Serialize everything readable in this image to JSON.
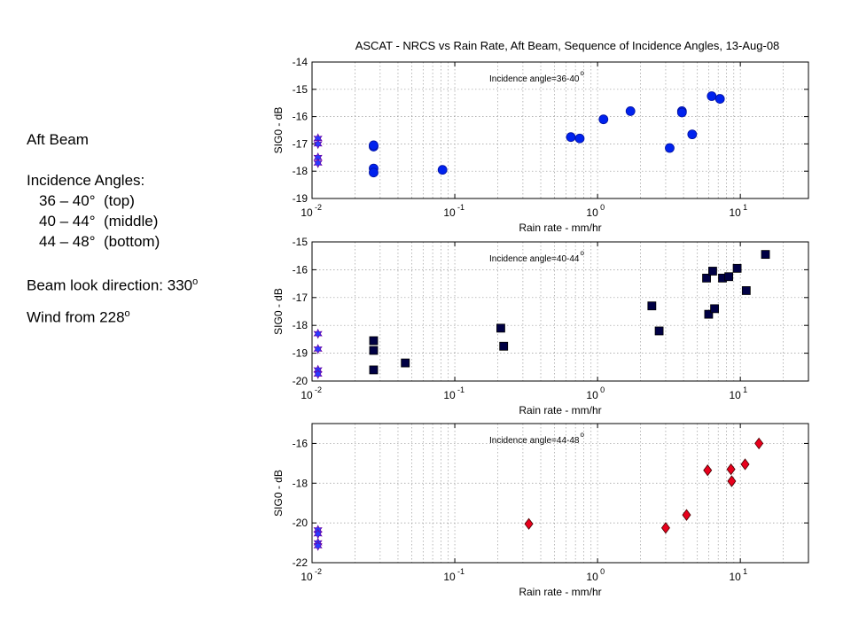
{
  "side_panel": {
    "beam": "Aft Beam",
    "angles_title": "Incidence Angles:",
    "angle_lines": [
      "36 – 40°  (top)",
      "40 – 44°  (middle)",
      "44 – 48°  (bottom)"
    ],
    "look_label": "Beam look direction: 330",
    "look_sup": "o",
    "wind_label": "Wind from 228",
    "wind_sup": "o"
  },
  "chart_title": "ASCAT - NRCS vs Rain Rate, Aft Beam, Sequence of Incidence Angles, 13-Aug-08",
  "colors": {
    "blue": "#0022ee",
    "navy": "#000044",
    "red": "#e8001c",
    "star_fill": "#2a3aff",
    "star_stroke": "#6a00a0"
  },
  "chart_data": [
    {
      "type": "scatter",
      "annotation": "Incidence angle=36-40",
      "annotation_sup": "o",
      "xlabel": "Rain rate - mm/hr",
      "ylabel": "SIG0 - dB",
      "xscale": "log",
      "xlim": [
        0.01,
        30
      ],
      "ylim": [
        -19,
        -14
      ],
      "yticks": [
        -19,
        -18,
        -17,
        -16,
        -15,
        -14
      ],
      "xticks": [
        0.01,
        0.1,
        1,
        10
      ],
      "xtick_labels": [
        {
          "base": "10",
          "exp": "-2"
        },
        {
          "base": "10",
          "exp": "-1"
        },
        {
          "base": "10",
          "exp": "0"
        },
        {
          "base": "10",
          "exp": "1"
        }
      ],
      "grid": true,
      "marker": "circle",
      "color": "#0022ee",
      "points": [
        {
          "x": 0.027,
          "y": -17.1
        },
        {
          "x": 0.027,
          "y": -17.05
        },
        {
          "x": 0.027,
          "y": -17.9
        },
        {
          "x": 0.027,
          "y": -18.05
        },
        {
          "x": 0.082,
          "y": -17.95
        },
        {
          "x": 0.65,
          "y": -16.75
        },
        {
          "x": 0.75,
          "y": -16.8
        },
        {
          "x": 1.1,
          "y": -16.1
        },
        {
          "x": 1.7,
          "y": -15.8
        },
        {
          "x": 3.2,
          "y": -17.15
        },
        {
          "x": 3.9,
          "y": -15.8
        },
        {
          "x": 3.9,
          "y": -15.85
        },
        {
          "x": 4.6,
          "y": -16.65
        },
        {
          "x": 6.3,
          "y": -15.25
        },
        {
          "x": 7.2,
          "y": -15.35
        }
      ],
      "star_points": [
        {
          "x": 0.011,
          "y": -16.8
        },
        {
          "x": 0.011,
          "y": -17.0
        },
        {
          "x": 0.011,
          "y": -17.5
        },
        {
          "x": 0.011,
          "y": -17.7
        }
      ]
    },
    {
      "type": "scatter",
      "annotation": "Incidence angle=40-44",
      "annotation_sup": "o",
      "xlabel": "Rain rate - mm/hr",
      "ylabel": "SIG0 - dB",
      "xscale": "log",
      "xlim": [
        0.01,
        30
      ],
      "ylim": [
        -20,
        -15
      ],
      "yticks": [
        -20,
        -19,
        -18,
        -17,
        -16,
        -15
      ],
      "xticks": [
        0.01,
        0.1,
        1,
        10
      ],
      "xtick_labels": [
        {
          "base": "10",
          "exp": "-2"
        },
        {
          "base": "10",
          "exp": "-1"
        },
        {
          "base": "10",
          "exp": "0"
        },
        {
          "base": "10",
          "exp": "1"
        }
      ],
      "grid": true,
      "marker": "square",
      "color": "#000044",
      "points": [
        {
          "x": 0.027,
          "y": -18.55
        },
        {
          "x": 0.027,
          "y": -18.9
        },
        {
          "x": 0.027,
          "y": -19.6
        },
        {
          "x": 0.045,
          "y": -19.35
        },
        {
          "x": 0.21,
          "y": -18.1
        },
        {
          "x": 0.22,
          "y": -18.75
        },
        {
          "x": 2.4,
          "y": -17.3
        },
        {
          "x": 2.7,
          "y": -18.2
        },
        {
          "x": 5.8,
          "y": -16.3
        },
        {
          "x": 6.0,
          "y": -17.6
        },
        {
          "x": 6.4,
          "y": -16.05
        },
        {
          "x": 6.6,
          "y": -17.4
        },
        {
          "x": 7.5,
          "y": -16.3
        },
        {
          "x": 8.3,
          "y": -16.25
        },
        {
          "x": 9.5,
          "y": -15.95
        },
        {
          "x": 11.0,
          "y": -16.75
        },
        {
          "x": 15.0,
          "y": -15.45
        }
      ],
      "star_points": [
        {
          "x": 0.011,
          "y": -18.3
        },
        {
          "x": 0.011,
          "y": -18.85
        },
        {
          "x": 0.011,
          "y": -19.6
        },
        {
          "x": 0.011,
          "y": -19.75
        }
      ]
    },
    {
      "type": "scatter",
      "annotation": "Incidence angle=44-48",
      "annotation_sup": "o",
      "xlabel": "Rain rate - mm/hr",
      "ylabel": "SIG0 - dB",
      "xscale": "log",
      "xlim": [
        0.01,
        30
      ],
      "ylim": [
        -22,
        -15
      ],
      "yticks": [
        -22,
        -20,
        -18,
        -16
      ],
      "xticks": [
        0.01,
        0.1,
        1,
        10
      ],
      "xtick_labels": [
        {
          "base": "10",
          "exp": "-2"
        },
        {
          "base": "10",
          "exp": "-1"
        },
        {
          "base": "10",
          "exp": "0"
        },
        {
          "base": "10",
          "exp": "1"
        }
      ],
      "grid": true,
      "marker": "diamond",
      "color": "#e8001c",
      "points": [
        {
          "x": 0.33,
          "y": -20.05
        },
        {
          "x": 3.0,
          "y": -20.25
        },
        {
          "x": 4.2,
          "y": -19.6
        },
        {
          "x": 5.9,
          "y": -17.35
        },
        {
          "x": 8.6,
          "y": -17.3
        },
        {
          "x": 8.7,
          "y": -17.9
        },
        {
          "x": 10.8,
          "y": -17.05
        },
        {
          "x": 13.5,
          "y": -16.0
        }
      ],
      "star_points": [
        {
          "x": 0.011,
          "y": -20.35
        },
        {
          "x": 0.011,
          "y": -20.55
        },
        {
          "x": 0.011,
          "y": -21.0
        },
        {
          "x": 0.011,
          "y": -21.15
        }
      ]
    }
  ]
}
